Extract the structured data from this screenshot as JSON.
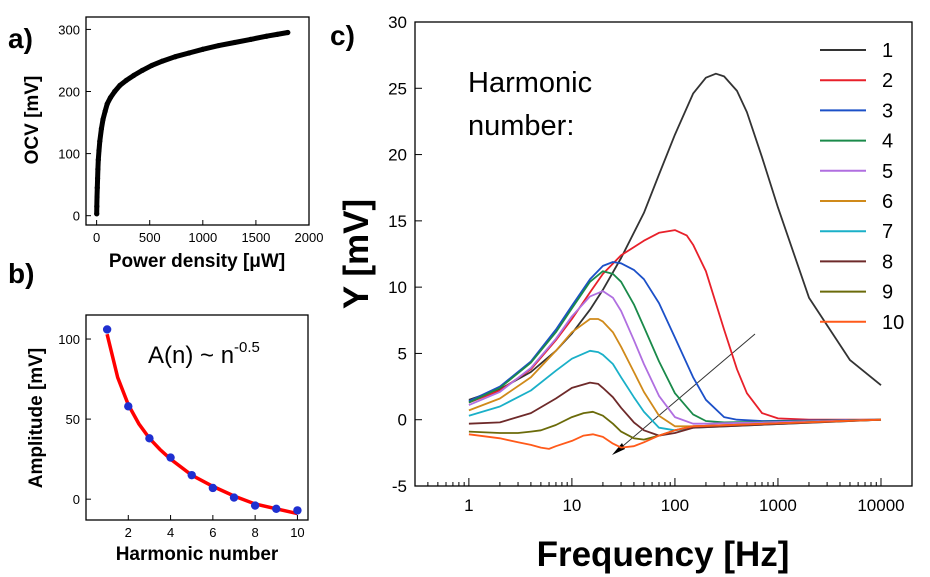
{
  "panels": {
    "a": "a)",
    "b": "b)",
    "c": "c)"
  },
  "chart_data": [
    {
      "type": "scatter",
      "panel": "a)",
      "xlabel": "Power density [μW]",
      "ylabel": "OCV [mV]",
      "xlim": [
        -100,
        2000
      ],
      "ylim": [
        -15,
        320
      ],
      "xticks": [
        0,
        500,
        1000,
        1500,
        2000
      ],
      "yticks": [
        0,
        100,
        200,
        300
      ],
      "marker_color": "#000000",
      "series": [
        {
          "x": [
            1,
            2,
            4,
            6,
            9,
            12,
            16,
            22,
            30,
            45,
            60,
            80,
            100,
            130,
            170,
            220,
            280,
            350,
            430,
            520,
            620,
            740,
            870,
            1000,
            1150,
            1300,
            1450,
            1600,
            1700,
            1800
          ],
          "y": [
            3,
            15,
            30,
            45,
            60,
            75,
            90,
            105,
            120,
            140,
            155,
            168,
            180,
            190,
            200,
            210,
            218,
            226,
            234,
            242,
            249,
            256,
            262,
            268,
            274,
            279,
            284,
            289,
            292,
            295
          ]
        }
      ]
    },
    {
      "type": "scatter",
      "panel": "b)",
      "xlabel": "Harmonic number",
      "ylabel": "Amplitude [mV]",
      "xlim": [
        0,
        10.5
      ],
      "ylim": [
        -13,
        115
      ],
      "xticks": [
        2,
        4,
        6,
        8,
        10
      ],
      "yticks": [
        0,
        50,
        100
      ],
      "annotation": {
        "text": "A(n) ~ n",
        "sup": "-0.5"
      },
      "marker_color": "#1f2fd0",
      "fit_color": "#ff0000",
      "series": [
        {
          "x": [
            1,
            2,
            3,
            4,
            5,
            6,
            7,
            8,
            9,
            10
          ],
          "y": [
            106,
            58,
            38,
            26,
            15,
            7,
            1,
            -4,
            -6,
            -7
          ]
        }
      ],
      "fit": {
        "x": [
          1,
          1.5,
          2,
          2.5,
          3,
          3.5,
          4,
          5,
          6,
          7,
          8,
          9,
          10
        ],
        "y": [
          103,
          76,
          59,
          47,
          38,
          31,
          25,
          15,
          8,
          2,
          -3,
          -6,
          -9
        ]
      }
    },
    {
      "type": "line",
      "panel": "c)",
      "xlabel": "Frequency [Hz]",
      "ylabel": "Y [mV]",
      "x_scale": "log",
      "xlim": [
        0.3,
        20000
      ],
      "ylim": [
        -5,
        30
      ],
      "xticks": [
        1,
        10,
        100,
        1000,
        10000
      ],
      "yticks": [
        -5,
        0,
        5,
        10,
        15,
        20,
        25,
        30
      ],
      "annotation": "Harmonic\nnumber:",
      "legend_position": "top-right",
      "series": [
        {
          "name": "1",
          "color": "#333333",
          "x": [
            1,
            2,
            4,
            7,
            10,
            15,
            20,
            30,
            50,
            70,
            100,
            150,
            200,
            250,
            300,
            400,
            500,
            700,
            1000,
            2000,
            5000,
            10000
          ],
          "y": [
            1.5,
            2.3,
            3.6,
            5.2,
            6.5,
            8.3,
            9.8,
            12.2,
            15.6,
            18.5,
            21.5,
            24.6,
            25.8,
            26.1,
            25.9,
            24.8,
            23.2,
            19.8,
            16.0,
            9.2,
            4.5,
            2.6
          ]
        },
        {
          "name": "2",
          "color": "#e8202a",
          "x": [
            1,
            2,
            4,
            7,
            10,
            15,
            20,
            30,
            50,
            70,
            100,
            130,
            150,
            200,
            300,
            400,
            500,
            700,
            1000,
            2000,
            10000
          ],
          "y": [
            1.3,
            2.2,
            3.8,
            6.0,
            7.6,
            9.6,
            11.0,
            12.4,
            13.5,
            14.1,
            14.3,
            13.9,
            13.2,
            11.2,
            6.8,
            3.8,
            2.0,
            0.5,
            0.1,
            0.0,
            0.0
          ]
        },
        {
          "name": "3",
          "color": "#1c50c8",
          "x": [
            1,
            2,
            4,
            7,
            10,
            15,
            20,
            25,
            30,
            40,
            50,
            70,
            100,
            150,
            200,
            300,
            400,
            700,
            10000
          ],
          "y": [
            1.4,
            2.5,
            4.4,
            6.8,
            8.6,
            10.6,
            11.6,
            11.9,
            11.8,
            11.3,
            10.6,
            8.8,
            6.2,
            3.2,
            1.5,
            0.2,
            0.0,
            -0.1,
            0.0
          ]
        },
        {
          "name": "4",
          "color": "#1a8a4a",
          "x": [
            1,
            2,
            4,
            7,
            10,
            15,
            20,
            25,
            30,
            40,
            50,
            70,
            100,
            150,
            200,
            300,
            10000
          ],
          "y": [
            1.3,
            2.4,
            4.3,
            6.6,
            8.4,
            10.4,
            11.2,
            11.0,
            10.4,
            8.7,
            7.0,
            4.4,
            2.0,
            0.4,
            -0.1,
            -0.2,
            0.0
          ]
        },
        {
          "name": "5",
          "color": "#b06fe0",
          "x": [
            1,
            2,
            4,
            7,
            10,
            15,
            20,
            25,
            30,
            40,
            50,
            70,
            100,
            150,
            200,
            10000
          ],
          "y": [
            1.1,
            2.1,
            3.9,
            6.1,
            7.8,
            9.3,
            9.7,
            9.2,
            8.2,
            6.0,
            4.2,
            1.8,
            0.2,
            -0.3,
            -0.3,
            0.0
          ]
        },
        {
          "name": "6",
          "color": "#d08a1a",
          "x": [
            1,
            2,
            4,
            7,
            10,
            15,
            18,
            20,
            25,
            30,
            40,
            50,
            70,
            100,
            150,
            10000
          ],
          "y": [
            0.7,
            1.6,
            3.2,
            5.2,
            6.6,
            7.6,
            7.6,
            7.4,
            6.6,
            5.5,
            3.6,
            2.1,
            0.3,
            -0.5,
            -0.5,
            0.0
          ]
        },
        {
          "name": "7",
          "color": "#1ab0c8",
          "x": [
            1,
            2,
            4,
            7,
            10,
            15,
            18,
            20,
            25,
            30,
            40,
            50,
            70,
            100,
            150,
            10000
          ],
          "y": [
            0.3,
            1.0,
            2.2,
            3.7,
            4.6,
            5.2,
            5.1,
            4.9,
            4.2,
            3.2,
            1.7,
            0.6,
            -0.6,
            -0.8,
            -0.6,
            0.0
          ]
        },
        {
          "name": "8",
          "color": "#6e2a2a",
          "x": [
            1,
            2,
            4,
            7,
            10,
            15,
            18,
            20,
            25,
            30,
            40,
            50,
            70,
            100,
            150,
            10000
          ],
          "y": [
            -0.3,
            -0.2,
            0.5,
            1.6,
            2.4,
            2.8,
            2.7,
            2.4,
            1.7,
            0.9,
            -0.2,
            -0.8,
            -1.2,
            -1.0,
            -0.6,
            0.0
          ]
        },
        {
          "name": "9",
          "color": "#6b6b0a",
          "x": [
            1,
            2,
            3,
            4,
            5,
            7,
            10,
            13,
            16,
            20,
            25,
            30,
            40,
            50,
            70,
            100,
            150,
            10000
          ],
          "y": [
            -0.9,
            -1.0,
            -1.0,
            -0.9,
            -0.8,
            -0.4,
            0.2,
            0.5,
            0.6,
            0.3,
            -0.3,
            -0.9,
            -1.4,
            -1.5,
            -1.2,
            -0.8,
            -0.5,
            0.0
          ]
        },
        {
          "name": "10",
          "color": "#ff5a1a",
          "x": [
            1,
            2,
            3,
            4,
            5,
            6,
            7,
            10,
            13,
            16,
            20,
            25,
            30,
            40,
            50,
            70,
            100,
            150,
            10000
          ],
          "y": [
            -1.1,
            -1.4,
            -1.7,
            -1.9,
            -2.1,
            -2.2,
            -2.0,
            -1.6,
            -1.2,
            -1.1,
            -1.3,
            -1.8,
            -2.1,
            -2.0,
            -1.7,
            -1.2,
            -0.8,
            -0.5,
            0.0
          ]
        }
      ]
    }
  ]
}
